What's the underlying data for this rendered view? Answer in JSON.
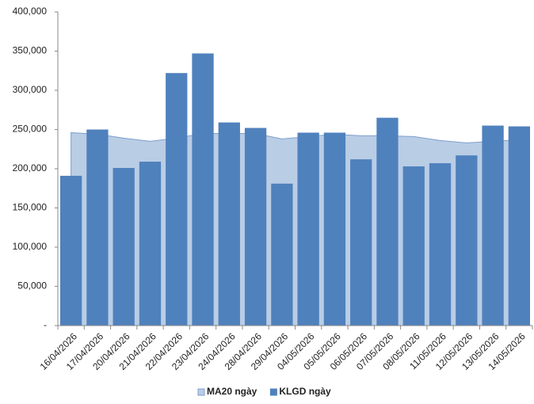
{
  "chart_data": {
    "type": "bar",
    "categories": [
      "16/04/2026",
      "17/04/2026",
      "20/04/2026",
      "21/04/2026",
      "22/04/2026",
      "23/04/2026",
      "24/04/2026",
      "28/04/2026",
      "29/04/2026",
      "04/05/2026",
      "05/05/2026",
      "06/05/2026",
      "07/05/2026",
      "08/05/2026",
      "11/05/2026",
      "12/05/2026",
      "13/05/2026",
      "14/05/2026"
    ],
    "series": [
      {
        "name": "MA20 ngày",
        "type": "area",
        "color": "#b9cde5",
        "stroke": "#7f9fcf",
        "values": [
          246000,
          244000,
          239000,
          235000,
          239000,
          245000,
          245000,
          245000,
          238000,
          241000,
          244000,
          242000,
          242000,
          241000,
          236000,
          233000,
          235000,
          237000
        ]
      },
      {
        "name": "KLGD ngày",
        "type": "bar",
        "color": "#4f81bd",
        "values": [
          191000,
          250000,
          201000,
          209000,
          322000,
          347000,
          259000,
          252000,
          181000,
          246000,
          246000,
          212000,
          265000,
          203000,
          207000,
          217000,
          255000,
          254000
        ]
      }
    ],
    "ylim": [
      0,
      400000
    ],
    "yticks": [
      {
        "value": 0,
        "label": "-"
      },
      {
        "value": 50000,
        "label": "50,000"
      },
      {
        "value": 100000,
        "label": "100,000"
      },
      {
        "value": 150000,
        "label": "150,000"
      },
      {
        "value": 200000,
        "label": "200,000"
      },
      {
        "value": 250000,
        "label": "250,000"
      },
      {
        "value": 300000,
        "label": "300,000"
      },
      {
        "value": 350000,
        "label": "350,000"
      },
      {
        "value": 400000,
        "label": "400,000"
      }
    ],
    "legend": "bottom"
  }
}
